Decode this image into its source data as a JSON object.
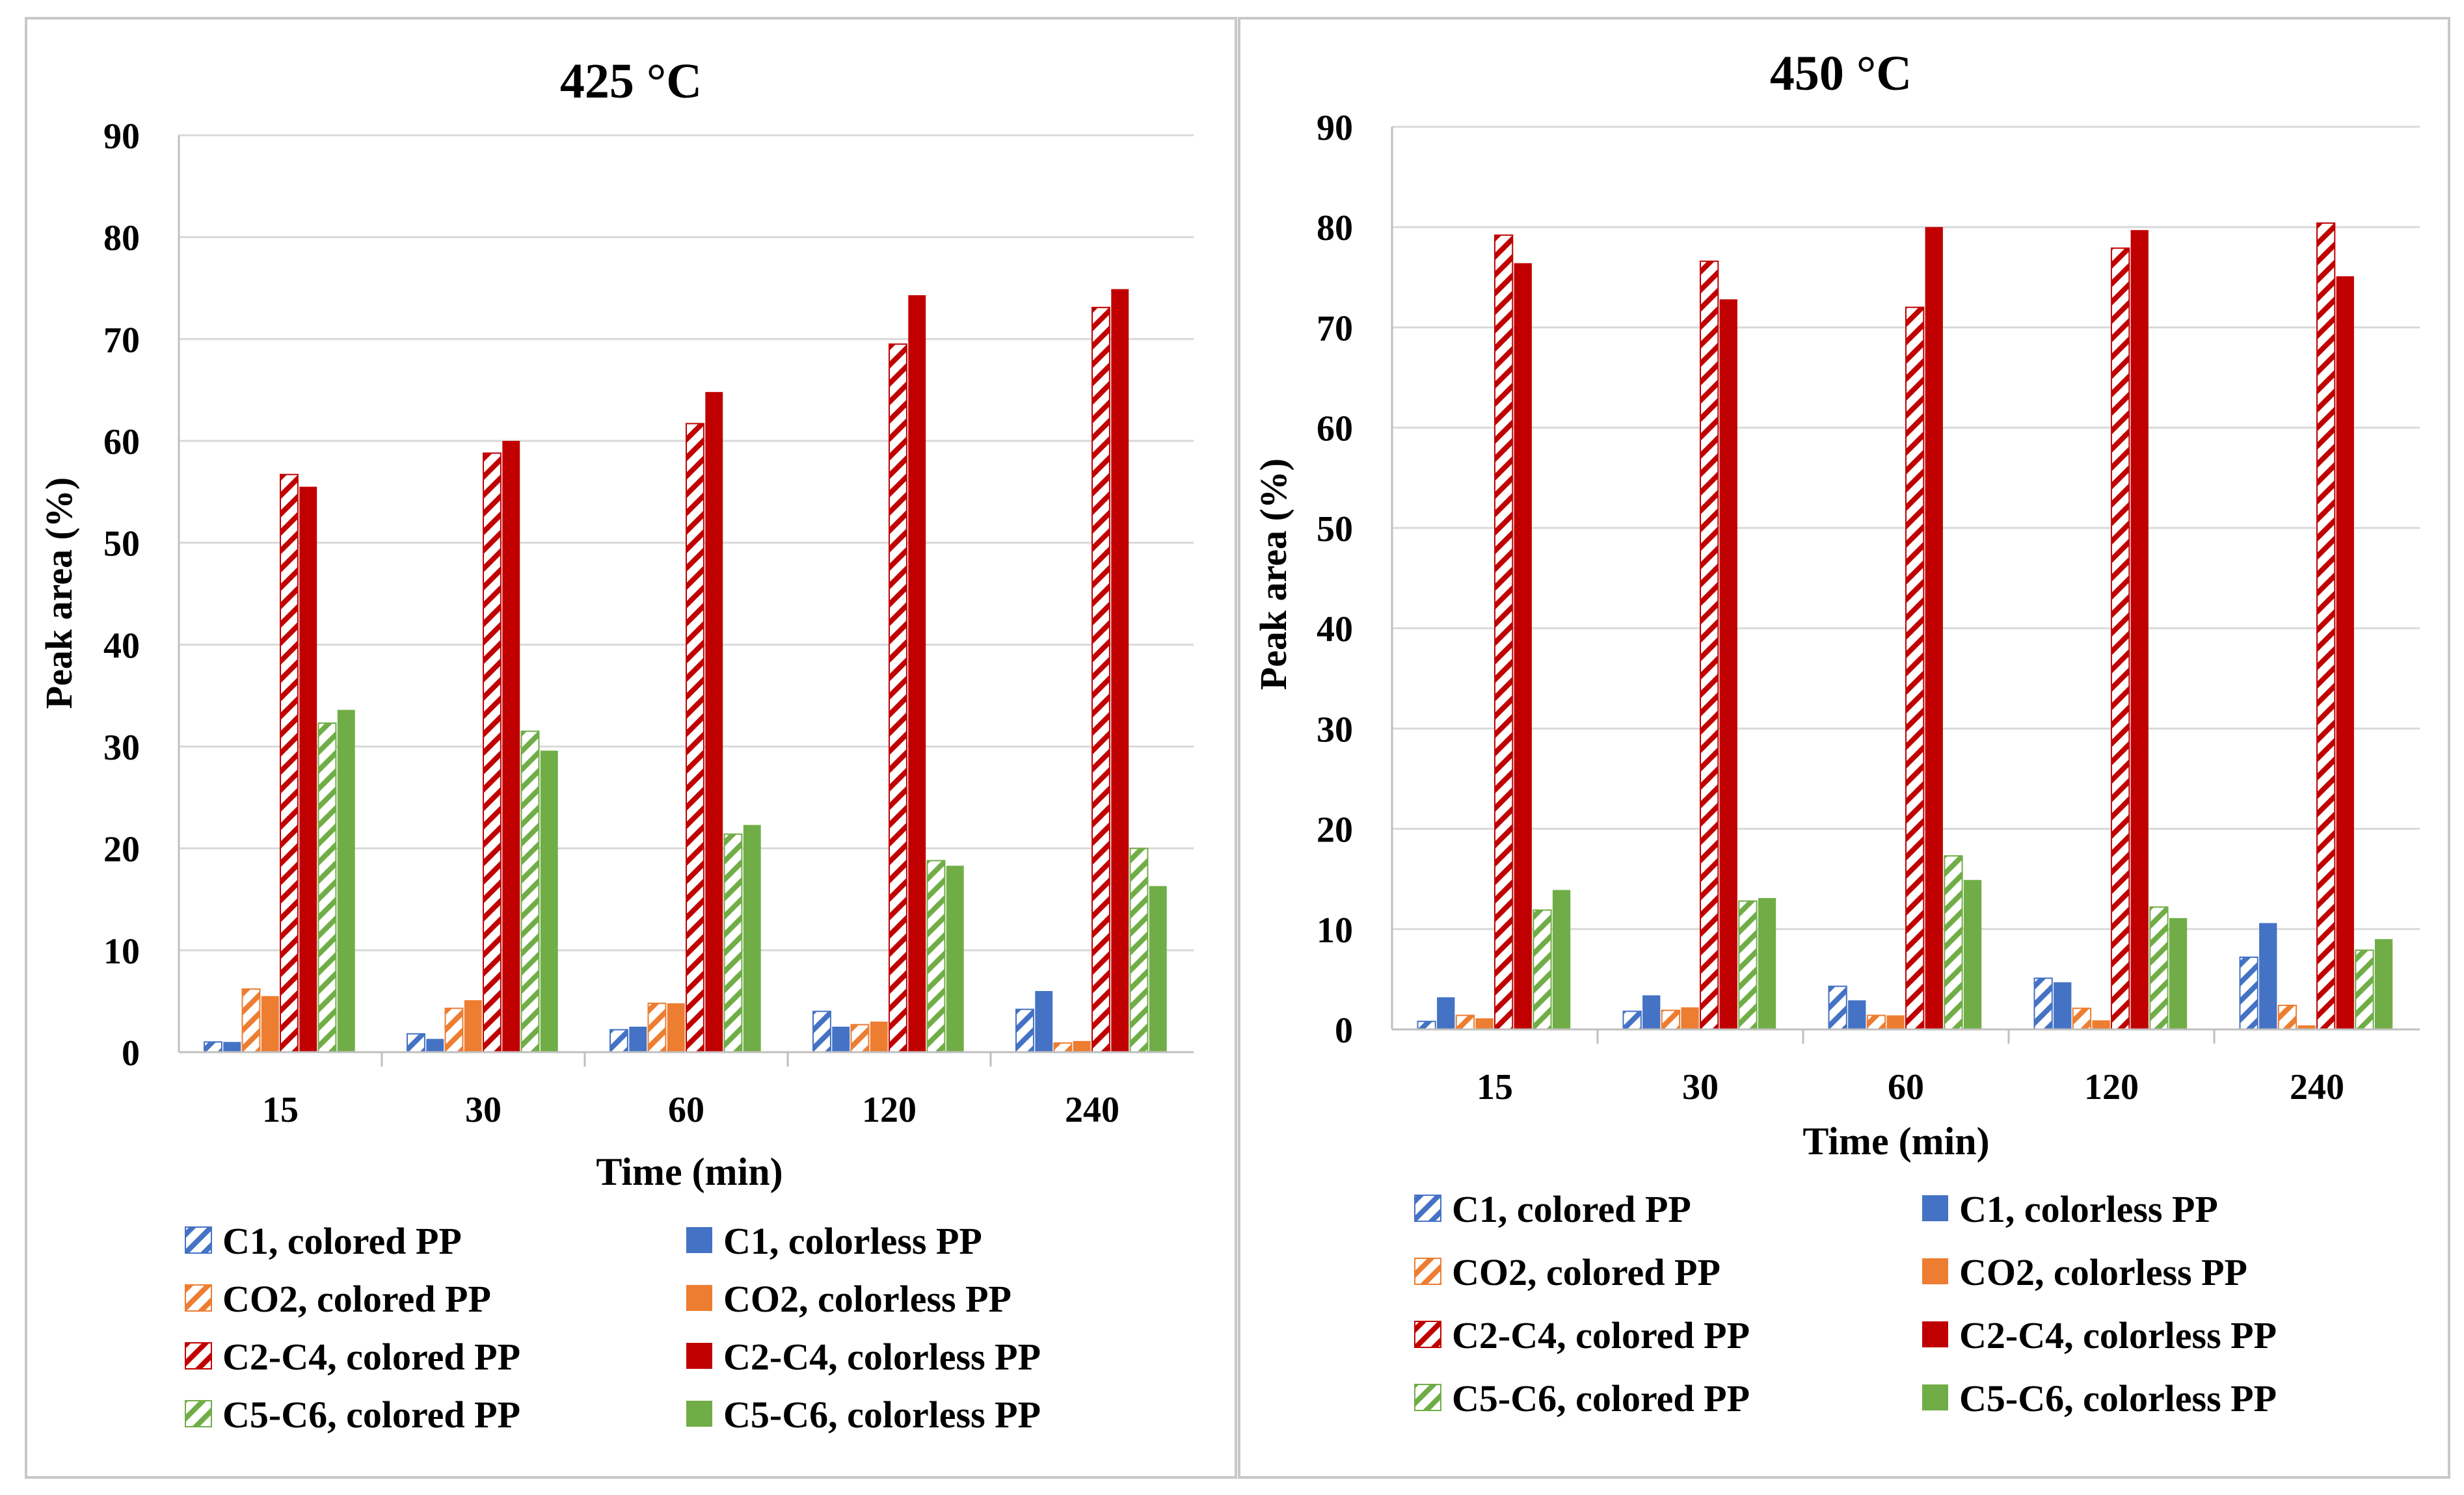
{
  "colors": {
    "C1": "#4472C4",
    "CO2": "#ED7D31",
    "C2C4": "#C00000",
    "C5C6": "#70AD47",
    "grid": "#D9D9D9",
    "axis": "#BFBFBF",
    "border": "#C8C8C8"
  },
  "legend_labels": {
    "C1_colored": "C1, colored PP",
    "C1_colorless": "C1, colorless PP",
    "CO2_colored": "CO2, colored PP",
    "CO2_colorless": "CO2, colorless PP",
    "C2C4_colored": "C2-C4, colored PP",
    "C2C4_colorless": "C2-C4, colorless PP",
    "C5C6_colored": "C5-C6, colored PP",
    "C5C6_colorless": "C5-C6, colorless PP"
  },
  "chart_data": [
    {
      "type": "bar",
      "title": "425 °C",
      "xlabel": "Time (min)",
      "ylabel": "Peak area (%)",
      "ylim": [
        0,
        90
      ],
      "yticks": [
        0,
        10,
        20,
        30,
        40,
        50,
        60,
        70,
        80,
        90
      ],
      "grid": true,
      "legend_position": "bottom",
      "categories": [
        "15",
        "30",
        "60",
        "120",
        "240"
      ],
      "series": [
        {
          "name": "C1, colored PP",
          "group": "C1",
          "pattern": "hatched",
          "values": [
            1.0,
            1.8,
            2.2,
            4.0,
            4.2
          ]
        },
        {
          "name": "C1, colorless PP",
          "group": "C1",
          "pattern": "solid",
          "values": [
            1.0,
            1.3,
            2.5,
            2.5,
            6.0
          ]
        },
        {
          "name": "CO2, colored PP",
          "group": "CO2",
          "pattern": "hatched",
          "values": [
            6.2,
            4.3,
            4.8,
            2.7,
            0.9
          ]
        },
        {
          "name": "CO2, colorless PP",
          "group": "CO2",
          "pattern": "solid",
          "values": [
            5.5,
            5.1,
            4.8,
            3.0,
            1.1
          ]
        },
        {
          "name": "C2-C4, colored PP",
          "group": "C2C4",
          "pattern": "hatched",
          "values": [
            56.7,
            58.8,
            61.7,
            69.5,
            73.1
          ]
        },
        {
          "name": "C2-C4, colorless PP",
          "group": "C2C4",
          "pattern": "solid",
          "values": [
            55.5,
            60.0,
            64.8,
            74.3,
            74.9
          ]
        },
        {
          "name": "C5-C6, colored PP",
          "group": "C5C6",
          "pattern": "hatched",
          "values": [
            32.3,
            31.5,
            21.4,
            18.8,
            20.0
          ]
        },
        {
          "name": "C5-C6, colorless PP",
          "group": "C5C6",
          "pattern": "solid",
          "values": [
            33.6,
            29.6,
            22.3,
            18.3,
            16.3
          ]
        }
      ]
    },
    {
      "type": "bar",
      "title": "450 °C",
      "xlabel": "Time (min)",
      "ylabel": "Peak area (%)",
      "ylim": [
        0,
        90
      ],
      "yticks": [
        0,
        10,
        20,
        30,
        40,
        50,
        60,
        70,
        80,
        90
      ],
      "grid": true,
      "legend_position": "bottom",
      "categories": [
        "15",
        "30",
        "60",
        "120",
        "240"
      ],
      "series": [
        {
          "name": "C1, colored PP",
          "group": "C1",
          "pattern": "hatched",
          "values": [
            0.8,
            1.8,
            4.3,
            5.1,
            7.2
          ]
        },
        {
          "name": "C1, colorless PP",
          "group": "C1",
          "pattern": "solid",
          "values": [
            3.2,
            3.4,
            2.9,
            4.7,
            10.6
          ]
        },
        {
          "name": "CO2, colored PP",
          "group": "CO2",
          "pattern": "hatched",
          "values": [
            1.4,
            1.9,
            1.4,
            2.1,
            2.4
          ]
        },
        {
          "name": "CO2, colorless PP",
          "group": "CO2",
          "pattern": "solid",
          "values": [
            1.1,
            2.2,
            1.4,
            0.9,
            0.4
          ]
        },
        {
          "name": "C2-C4, colored PP",
          "group": "C2C4",
          "pattern": "hatched",
          "values": [
            79.2,
            76.6,
            72.0,
            77.9,
            80.4
          ]
        },
        {
          "name": "C2-C4, colorless PP",
          "group": "C2C4",
          "pattern": "solid",
          "values": [
            76.4,
            72.8,
            80.0,
            79.7,
            75.1
          ]
        },
        {
          "name": "C5-C6, colored PP",
          "group": "C5C6",
          "pattern": "hatched",
          "values": [
            11.9,
            12.8,
            17.3,
            12.2,
            7.9
          ]
        },
        {
          "name": "C5-C6, colorless PP",
          "group": "C5C6",
          "pattern": "solid",
          "values": [
            13.9,
            13.1,
            14.9,
            11.1,
            9.0
          ]
        }
      ]
    }
  ]
}
